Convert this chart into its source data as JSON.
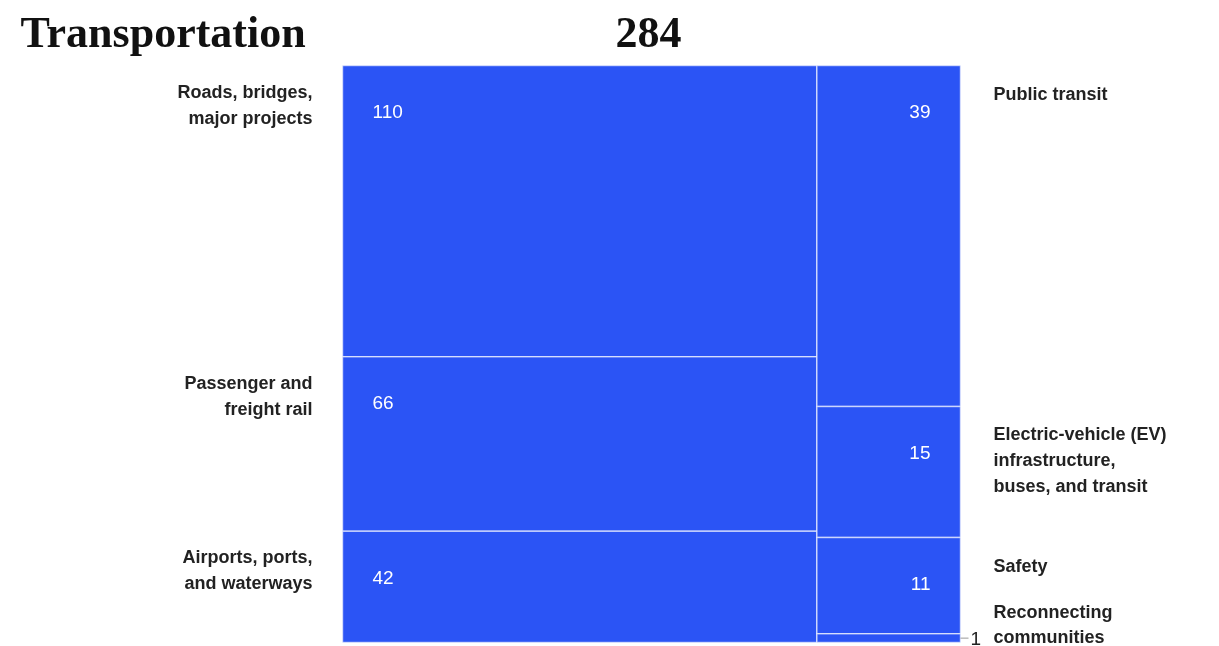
{
  "chart_data": {
    "type": "other",
    "title": "Transportation",
    "subtitle": "284",
    "color": "#2b54f5",
    "categories": [
      "Roads, bridges,\nmajor projects",
      "Passenger and\nfreight rail",
      "Airports, ports,\nand waterways",
      "Public transit",
      "Electric-vehicle (EV)\ninfrastructure,\nbuses, and transit",
      "Safety",
      "Reconnecting\ncommunities"
    ],
    "series": [
      {
        "values": [
          110,
          66,
          42,
          null,
          null,
          null,
          null
        ]
      },
      {
        "values": [
          null,
          null,
          null,
          39,
          15,
          11,
          1
        ]
      }
    ],
    "data_labels": true
  }
}
